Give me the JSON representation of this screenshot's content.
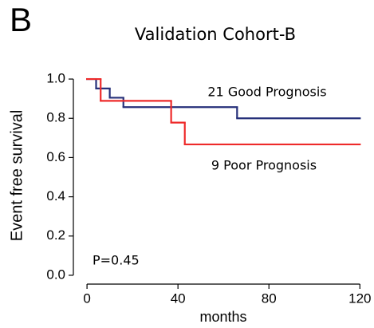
{
  "chart_data": {
    "type": "step",
    "panel": "B",
    "title": "Validation Cohort-B",
    "x_label": "months",
    "y_label": "Event free survival",
    "annotation": "P=0.45",
    "xlim": [
      -6,
      122
    ],
    "ylim": [
      -0.045,
      1.045
    ],
    "xticks": [
      0,
      40,
      80,
      120
    ],
    "yticks": [
      {
        "value": 0,
        "label": "0.0"
      },
      0.2,
      0.4,
      0.6,
      0.8,
      {
        "value": 1,
        "label": "1.0"
      }
    ],
    "series": [
      {
        "name": "21 Good Prognosis",
        "color": "#26307a",
        "x": [
          0,
          4,
          10,
          16,
          66,
          120
        ],
        "values": [
          1,
          0.952,
          0.905,
          0.857,
          0.8,
          0.8
        ]
      },
      {
        "name": "9 Poor Prognosis",
        "color": "#ee2a2a",
        "x": [
          0,
          6,
          37,
          43,
          120
        ],
        "values": [
          1,
          0.889,
          0.778,
          0.667,
          0.667
        ]
      }
    ]
  }
}
